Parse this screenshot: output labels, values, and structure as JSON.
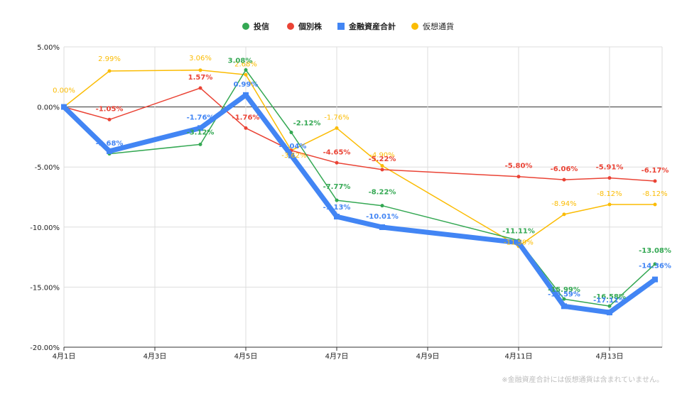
{
  "chart_data": {
    "type": "line",
    "categories": [
      "4月1日",
      "4月2日",
      "4月4日",
      "4月5日",
      "4月6日",
      "4月7日",
      "4月8日",
      "4月11日",
      "4月12日",
      "4月13日",
      "4月14日"
    ],
    "x_tick_labels": [
      "4月1日",
      "4月3日",
      "4月5日",
      "4月7日",
      "4月9日",
      "4月11日",
      "4月13日"
    ],
    "y_tick_labels": [
      "5.00%",
      "0.00%",
      "-5.00%",
      "-10.00%",
      "-15.00%",
      "-20.00%"
    ],
    "ylim": [
      -20,
      5
    ],
    "grid": true,
    "legend_position": "top-center",
    "series": [
      {
        "name": "投信",
        "color": "#34a853",
        "values": [
          0,
          -3.9,
          -3.12,
          3.08,
          -2.12,
          -7.77,
          -8.22,
          -11.11,
          -15.99,
          -16.58,
          -13.08
        ],
        "labels": [
          "",
          "",
          "-3.12%",
          "3.08%",
          "-2.12%",
          "-7.77%",
          "-8.22%",
          "-11.11%",
          "-15.99%",
          "-16.58%",
          "-13.08%"
        ]
      },
      {
        "name": "個別株",
        "color": "#ea4335",
        "values": [
          0,
          -1.05,
          1.57,
          -1.76,
          -3.62,
          -4.65,
          -5.22,
          -5.8,
          -6.06,
          -5.91,
          -6.17
        ],
        "labels": [
          "",
          "-1.05%",
          "1.57%",
          "-1.76%",
          "",
          "-4.65%",
          "-5.22%",
          "-5.80%",
          "-6.06%",
          "-5.91%",
          "-6.17%"
        ]
      },
      {
        "name": "金融資産合計",
        "color": "#4285f4",
        "values": [
          0,
          -3.68,
          -1.76,
          0.99,
          -4.04,
          -9.13,
          -10.01,
          -11.3,
          -16.59,
          -17.11,
          -14.36
        ],
        "labels": [
          "",
          "-3.68%",
          "-1.76%",
          "0.99%",
          "-4.04%",
          "-9.13%",
          "-10.01%",
          "",
          "-16.59%",
          "-17.11%",
          "-14.36%"
        ]
      },
      {
        "name": "仮想通貨",
        "color": "#fbbc04",
        "values": [
          0,
          2.99,
          3.06,
          2.68,
          -3.62,
          -1.76,
          -4.9,
          -11.59,
          -8.94,
          -8.12,
          -8.12
        ],
        "labels": [
          "0.00%",
          "2.99%",
          "3.06%",
          "2.68%",
          "-3.62%",
          "-1.76%",
          "-4.90%",
          "-11.59%",
          "-8.94%",
          "-8.12%",
          "-8.12%"
        ]
      }
    ]
  },
  "footnote": "※金融資産合計には仮想通貨は含まれていません。"
}
